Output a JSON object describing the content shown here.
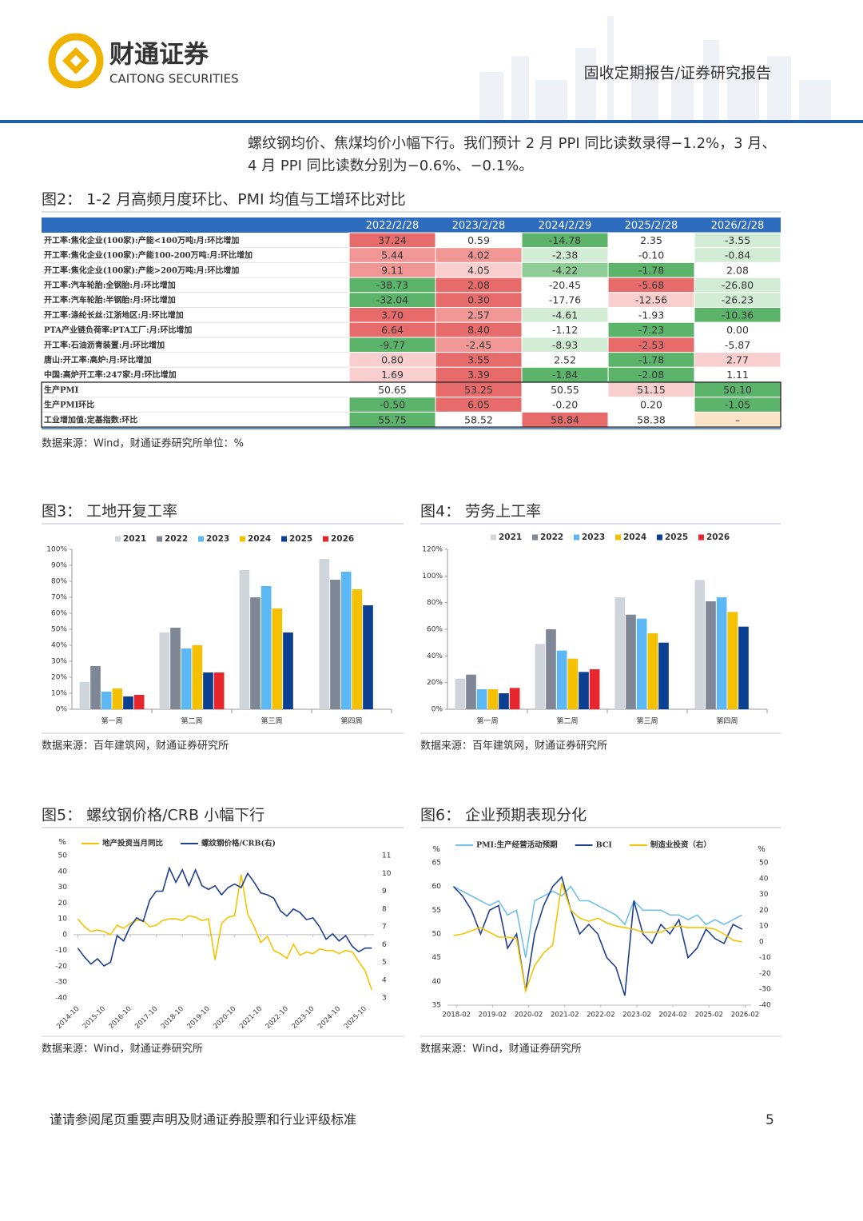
{
  "header": {
    "logo_cn": "财通证券",
    "logo_en": "CAITONG SECURITIES",
    "report_type": "固收定期报告/证券研究报告"
  },
  "body": {
    "paragraph": [
      "螺纹钢均价、焦煤均价小幅下行。我们预计 2 月 PPI 同比读数录得−1.2%，3 月、",
      "4 月 PPI 同比读数分别为−0.6%、−0.1%。"
    ]
  },
  "figure2": {
    "title": "图2：  1-2 月高频月度环比、PMI 均值与工增环比对比",
    "columns": [
      "2022/2/28",
      "2023/2/28",
      "2024/2/29",
      "2025/2/28",
      "2026/2/28"
    ],
    "rows": [
      {
        "label": "开工率:焦化企业(100家):产能<100万吨:月:环比增加",
        "cells": [
          "37.24",
          "0.59",
          "-14.78",
          "2.35",
          "-3.55"
        ],
        "colors": [
          "#e86b6b",
          "#ffffff",
          "#5cb46a",
          "#ffffff",
          "#d3ecd5"
        ]
      },
      {
        "label": "开工率:焦化企业(100家):产能100-200万吨:月:环比增加",
        "cells": [
          "5.44",
          "4.02",
          "-2.38",
          "-0.10",
          "-0.84"
        ],
        "colors": [
          "#f09695",
          "#f09695",
          "#d3ecd5",
          "#ffffff",
          "#d3ecd5"
        ]
      },
      {
        "label": "开工率:焦化企业(100家):产能>200万吨:月:环比增加",
        "cells": [
          "9.11",
          "4.05",
          "-4.22",
          "-1.78",
          "2.08"
        ],
        "colors": [
          "#f09695",
          "#f8cfce",
          "#8fcd97",
          "#5cb46a",
          "#ffffff"
        ]
      },
      {
        "label": "开工率:汽车轮胎:全钢胎:月:环比增加",
        "cells": [
          "-38.73",
          "2.08",
          "-20.45",
          "-5.68",
          "-26.80"
        ],
        "colors": [
          "#5cb46a",
          "#e86b6b",
          "#ffffff",
          "#e86b6b",
          "#d3ecd5"
        ]
      },
      {
        "label": "开工率:汽车轮胎:半钢胎:月:环比增加",
        "cells": [
          "-32.04",
          "0.30",
          "-17.76",
          "-12.56",
          "-26.23"
        ],
        "colors": [
          "#5cb46a",
          "#e86b6b",
          "#ffffff",
          "#f8cfce",
          "#d3ecd5"
        ]
      },
      {
        "label": "开工率:涤纶长丝:江浙地区:月:环比增加",
        "cells": [
          "3.70",
          "2.57",
          "-4.61",
          "-1.93",
          "-10.36"
        ],
        "colors": [
          "#e86b6b",
          "#f09695",
          "#d3ecd5",
          "#ffffff",
          "#5cb46a"
        ]
      },
      {
        "label": "PTA产业链负荷率:PTA工厂:月:环比增加",
        "cells": [
          "6.64",
          "8.40",
          "-1.12",
          "-7.23",
          "0.00"
        ],
        "colors": [
          "#e86b6b",
          "#e86b6b",
          "#ffffff",
          "#5cb46a",
          "#ffffff"
        ]
      },
      {
        "label": "开工率:石油沥青装置:月:环比增加",
        "cells": [
          "-9.77",
          "-2.45",
          "-8.93",
          "-2.53",
          "-5.87"
        ],
        "colors": [
          "#5cb46a",
          "#f09695",
          "#d3ecd5",
          "#e86b6b",
          "#ffffff"
        ]
      },
      {
        "label": "唐山:开工率:高炉:月:环比增加",
        "cells": [
          "0.80",
          "3.55",
          "2.52",
          "-1.78",
          "2.77"
        ],
        "colors": [
          "#f8cfce",
          "#e86b6b",
          "#ffffff",
          "#5cb46a",
          "#f8cfce"
        ]
      },
      {
        "label": "中国:高炉开工率:247家:月:环比增加",
        "cells": [
          "1.69",
          "3.39",
          "-1.84",
          "-2.08",
          "1.11"
        ],
        "colors": [
          "#f8cfce",
          "#e86b6b",
          "#5cb46a",
          "#5cb46a",
          "#ffffff"
        ]
      },
      {
        "label": "生产PMI",
        "cells": [
          "50.65",
          "53.25",
          "50.55",
          "51.15",
          "50.10"
        ],
        "colors": [
          "#ffffff",
          "#e86b6b",
          "#ffffff",
          "#f8cfce",
          "#5cb46a"
        ]
      },
      {
        "label": "生产PMI环比",
        "cells": [
          "-0.50",
          "6.05",
          "-0.20",
          "0.20",
          "-1.05"
        ],
        "colors": [
          "#5cb46a",
          "#e86b6b",
          "#ffffff",
          "#ffffff",
          "#5cb46a"
        ]
      },
      {
        "label": "工业增加值:定基指数:环比",
        "cells": [
          "55.75",
          "58.52",
          "58.84",
          "58.38",
          "–"
        ],
        "colors": [
          "#5cb46a",
          "#ffffff",
          "#e86b6b",
          "#ffffff",
          "#fbe3c8"
        ]
      }
    ],
    "source": "数据来源：Wind，财通证券研究所单位：%"
  },
  "chart_data": [
    {
      "type": "bar",
      "title": "图3：  工地开复工率",
      "source": "数据来源：百年建筑网，财通证券研究所",
      "categories": [
        "第一周",
        "第二周",
        "第三周",
        "第四周"
      ],
      "series": [
        {
          "name": "2021",
          "color": "#d0d5dc",
          "values": [
            17,
            48,
            87,
            94
          ]
        },
        {
          "name": "2022",
          "color": "#7f8796",
          "values": [
            27,
            51,
            70,
            81
          ]
        },
        {
          "name": "2023",
          "color": "#5bb8f5",
          "values": [
            11,
            38,
            77,
            86
          ]
        },
        {
          "name": "2024",
          "color": "#f5c000",
          "values": [
            13,
            40,
            63,
            75
          ]
        },
        {
          "name": "2025",
          "color": "#0b3f91",
          "values": [
            8,
            23,
            48,
            65
          ]
        },
        {
          "name": "2026",
          "color": "#e8262e",
          "values": [
            9,
            23,
            null,
            null
          ]
        }
      ],
      "ylim": [
        0,
        100
      ],
      "yticks": [
        {
          "value": 0,
          "label": "0%"
        },
        {
          "value": 10,
          "label": "10%"
        },
        {
          "value": 20,
          "label": "20%"
        },
        {
          "value": 30,
          "label": "30%"
        },
        {
          "value": 40,
          "label": "40%"
        },
        {
          "value": 50,
          "label": "50%"
        },
        {
          "value": 60,
          "label": "60%"
        },
        {
          "value": 70,
          "label": "70%"
        },
        {
          "value": 80,
          "label": "80%"
        },
        {
          "value": 90,
          "label": "90%"
        },
        {
          "value": 100,
          "label": "100%"
        }
      ],
      "grid": false,
      "legend": "top"
    },
    {
      "type": "bar",
      "title": "图4：  劳务上工率",
      "source": "数据来源：百年建筑网，财通证券研究所",
      "categories": [
        "第一周",
        "第二周",
        "第三周",
        "第四周"
      ],
      "series": [
        {
          "name": "2021",
          "color": "#d0d5dc",
          "values": [
            23,
            49,
            84,
            97
          ]
        },
        {
          "name": "2022",
          "color": "#7f8796",
          "values": [
            26,
            60,
            71,
            81
          ]
        },
        {
          "name": "2023",
          "color": "#5bb8f5",
          "values": [
            15,
            44,
            68,
            84
          ]
        },
        {
          "name": "2024",
          "color": "#f5c000",
          "values": [
            15,
            38,
            57,
            73
          ]
        },
        {
          "name": "2025",
          "color": "#0b3f91",
          "values": [
            12,
            28,
            50,
            62
          ]
        },
        {
          "name": "2026",
          "color": "#e8262e",
          "values": [
            16,
            30,
            null,
            null
          ]
        }
      ],
      "ylim": [
        0,
        120
      ],
      "yticks": [
        {
          "value": 0,
          "label": "0%"
        },
        {
          "value": 20,
          "label": "20%"
        },
        {
          "value": 40,
          "label": "40%"
        },
        {
          "value": 60,
          "label": "60%"
        },
        {
          "value": 80,
          "label": "80%"
        },
        {
          "value": 100,
          "label": "100%"
        },
        {
          "value": 120,
          "label": "120%"
        }
      ],
      "grid": false,
      "legend": "top"
    },
    {
      "type": "line",
      "title": "图5：  螺纹钢价格/CRB 小幅下行",
      "source": "数据来源：Wind，财通证券研究所",
      "y_label": "%",
      "x": [
        "2014-10",
        "2015-01",
        "2015-04",
        "2015-07",
        "2015-10",
        "2016-01",
        "2016-04",
        "2016-07",
        "2016-10",
        "2017-01",
        "2017-04",
        "2017-07",
        "2017-10",
        "2018-01",
        "2018-04",
        "2018-07",
        "2018-10",
        "2019-01",
        "2019-04",
        "2019-07",
        "2019-10",
        "2020-01",
        "2020-04",
        "2020-07",
        "2020-10",
        "2021-01",
        "2021-04",
        "2021-07",
        "2021-10",
        "2022-01",
        "2022-04",
        "2022-07",
        "2022-10",
        "2023-01",
        "2023-04",
        "2023-07",
        "2023-10",
        "2024-01",
        "2024-04",
        "2024-07",
        "2024-10",
        "2025-01",
        "2025-04",
        "2025-07",
        "2025-10",
        "2026-01"
      ],
      "series": [
        {
          "name": "地产投资当月同比",
          "color": "#f2c500",
          "values": [
            10,
            5,
            2,
            3,
            2,
            0,
            6,
            4,
            7,
            9,
            9,
            5,
            6,
            9,
            10,
            10,
            9,
            12,
            11,
            9,
            10,
            -16,
            7,
            11,
            12,
            38,
            13,
            5,
            -5,
            -1,
            -10,
            -12,
            -15,
            -6,
            -13,
            -11,
            -12,
            -9,
            -10,
            -10,
            -12,
            -10,
            -11,
            -17,
            -23,
            -35
          ]
        },
        {
          "name": "螺纹钢价格/CRB(右)",
          "color": "#1f3f8f",
          "axis": "y2",
          "values": [
            5.8,
            5.3,
            4.9,
            5.2,
            4.8,
            5.0,
            6.5,
            6.2,
            7.0,
            7.5,
            7.3,
            8.5,
            9.0,
            9.0,
            10.3,
            9.5,
            10.2,
            9.3,
            10.2,
            9.3,
            9.1,
            9.3,
            8.8,
            9.2,
            9.4,
            9.2,
            10.0,
            9.5,
            8.9,
            8.8,
            8.6,
            7.9,
            7.6,
            8.0,
            7.8,
            7.4,
            7.5,
            7.0,
            6.3,
            6.6,
            6.2,
            6.5,
            5.9,
            5.6,
            5.8,
            5.8
          ]
        }
      ],
      "xlim": [
        "2014-08",
        "2026-02"
      ],
      "xticks": [
        "2014-10",
        "2015-10",
        "2016-10",
        "2017-10",
        "2018-10",
        "2019-10",
        "2020-10",
        "2021-10",
        "2022-10",
        "2023-10",
        "2024-10",
        "2025-10"
      ],
      "xtick_rotation": 45,
      "ylim": [
        -40,
        50
      ],
      "yticks": [
        -40,
        -30,
        -20,
        -10,
        0,
        10,
        20,
        30,
        40,
        50
      ],
      "y2lim": [
        3,
        11
      ],
      "y2ticks": [
        3,
        4,
        5,
        6,
        7,
        8,
        9,
        10,
        11
      ],
      "grid": false,
      "legend": "top"
    },
    {
      "type": "line",
      "title": "图6：  企业预期表现分化",
      "source": "数据来源：Wind，财通证券研究所",
      "y_label": "%",
      "y2_label": "%",
      "x": [
        "2018-01",
        "2018-04",
        "2018-07",
        "2018-10",
        "2019-01",
        "2019-04",
        "2019-07",
        "2019-10",
        "2020-01",
        "2020-04",
        "2020-07",
        "2020-10",
        "2021-01",
        "2021-04",
        "2021-07",
        "2021-10",
        "2022-01",
        "2022-04",
        "2022-07",
        "2022-10",
        "2023-01",
        "2023-04",
        "2023-07",
        "2023-10",
        "2024-01",
        "2024-04",
        "2024-07",
        "2024-10",
        "2025-01",
        "2025-04",
        "2025-07",
        "2025-10",
        "2026-01"
      ],
      "series": [
        {
          "name": "PMI:生产经营活动预期",
          "color": "#72c0ea",
          "values": [
            60,
            59,
            58,
            57,
            56,
            57,
            54,
            55,
            45,
            57,
            58,
            59,
            58,
            60,
            57,
            57,
            56,
            55,
            54,
            52,
            57,
            55,
            55,
            55,
            54,
            54,
            53,
            54,
            52,
            53,
            52,
            53,
            54
          ]
        },
        {
          "name": "BCI",
          "color": "#1f3f8f",
          "values": [
            60,
            58,
            55,
            50,
            55,
            56,
            47,
            50,
            38,
            50,
            56,
            60,
            62,
            55,
            50,
            52,
            50,
            45,
            43,
            37,
            57,
            50,
            48,
            52,
            50,
            53,
            45,
            47,
            51,
            49,
            48,
            52,
            51
          ]
        },
        {
          "name": "制造业投资（右）",
          "color": "#f2c500",
          "axis": "y2",
          "values": [
            4,
            5,
            7,
            9,
            6,
            3,
            3,
            2,
            -31,
            -15,
            -7,
            -2,
            37,
            20,
            15,
            13,
            15,
            12,
            10,
            9,
            8,
            6,
            6,
            6,
            9,
            10,
            9,
            9,
            9,
            8,
            5,
            1,
            0
          ]
        }
      ],
      "xlim": [
        "2017-11",
        "2026-04"
      ],
      "xticks": [
        "2018-02",
        "2019-02",
        "2020-02",
        "2021-02",
        "2022-02",
        "2023-02",
        "2024-02",
        "2025-02",
        "2026-02"
      ],
      "ylim": [
        35,
        65
      ],
      "yticks": [
        35,
        40,
        45,
        50,
        55,
        60,
        65
      ],
      "y2lim": [
        -40,
        50
      ],
      "y2ticks": [
        -40,
        -30,
        -20,
        -10,
        0,
        10,
        20,
        30,
        40,
        50
      ],
      "grid": false,
      "legend": "top"
    }
  ],
  "footer": {
    "disclaimer": "谨请参阅尾页重要声明及财通证券股票和行业评级标准",
    "page": "5"
  }
}
